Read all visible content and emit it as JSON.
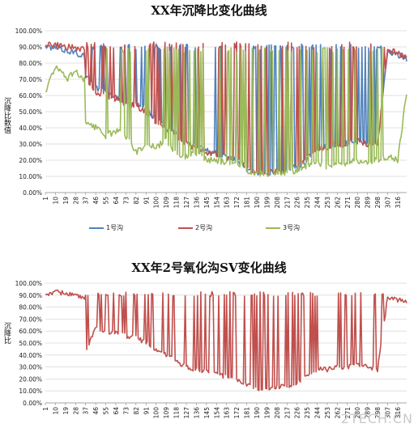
{
  "chart_data": [
    {
      "type": "line",
      "title": "XX年沉降比变化曲线",
      "ylabel": "沉降比数值",
      "xlabel": "",
      "ylim": [
        0,
        100
      ],
      "y_tick_labels": [
        "0.00%",
        "10.00%",
        "20.00%",
        "30.00%",
        "40.00%",
        "50.00%",
        "60.00%",
        "70.00%",
        "80.00%",
        "90.00%",
        "100.00%"
      ],
      "x_tick_labels": [
        "1",
        "10",
        "19",
        "28",
        "37",
        "46",
        "55",
        "64",
        "73",
        "82",
        "91",
        "100",
        "109",
        "118",
        "127",
        "136",
        "145",
        "154",
        "163",
        "172",
        "181",
        "190",
        "199",
        "208",
        "217",
        "226",
        "235",
        "244",
        "253",
        "262",
        "271",
        "280",
        "289",
        "298",
        "307",
        "316"
      ],
      "x_count": 324,
      "grid": true,
      "legend_position": "bottom",
      "series": [
        {
          "name": "1号沟",
          "color": "#4f81bd",
          "keypoints": [
            [
              1,
              90
            ],
            [
              20,
              88
            ],
            [
              30,
              86
            ],
            [
              36,
              85
            ],
            [
              37,
              72
            ],
            [
              46,
              65
            ],
            [
              55,
              62
            ],
            [
              64,
              60
            ],
            [
              73,
              56
            ],
            [
              82,
              55
            ],
            [
              91,
              52
            ],
            [
              100,
              45
            ],
            [
              109,
              40
            ],
            [
              118,
              36
            ],
            [
              127,
              30
            ],
            [
              136,
              28
            ],
            [
              145,
              26
            ],
            [
              154,
              24
            ],
            [
              163,
              23
            ],
            [
              172,
              20
            ],
            [
              181,
              15
            ],
            [
              190,
              12
            ],
            [
              199,
              12
            ],
            [
              208,
              13
            ],
            [
              217,
              14
            ],
            [
              226,
              15
            ],
            [
              235,
              20
            ],
            [
              240,
              25
            ],
            [
              244,
              28
            ],
            [
              253,
              28
            ],
            [
              262,
              30
            ],
            [
              271,
              30
            ],
            [
              280,
              32
            ],
            [
              289,
              30
            ],
            [
              298,
              32
            ],
            [
              307,
              88
            ],
            [
              316,
              85
            ],
            [
              324,
              83
            ]
          ],
          "spike_top": 92
        },
        {
          "name": "2号沟",
          "color": "#c0504d",
          "keypoints": [
            [
              1,
              92
            ],
            [
              20,
              90
            ],
            [
              30,
              89
            ],
            [
              36,
              88
            ],
            [
              37,
              70
            ],
            [
              46,
              62
            ],
            [
              55,
              60
            ],
            [
              64,
              58
            ],
            [
              73,
              55
            ],
            [
              82,
              54
            ],
            [
              91,
              50
            ],
            [
              100,
              44
            ],
            [
              109,
              40
            ],
            [
              118,
              35
            ],
            [
              127,
              30
            ],
            [
              136,
              27
            ],
            [
              145,
              25
            ],
            [
              154,
              24
            ],
            [
              163,
              22
            ],
            [
              172,
              20
            ],
            [
              181,
              15
            ],
            [
              190,
              12
            ],
            [
              199,
              12
            ],
            [
              208,
              13
            ],
            [
              217,
              14
            ],
            [
              226,
              16
            ],
            [
              235,
              22
            ],
            [
              240,
              26
            ],
            [
              244,
              28
            ],
            [
              253,
              28
            ],
            [
              262,
              30
            ],
            [
              271,
              30
            ],
            [
              280,
              32
            ],
            [
              289,
              30
            ],
            [
              298,
              30
            ],
            [
              307,
              88
            ],
            [
              316,
              86
            ],
            [
              324,
              84
            ]
          ],
          "spike_top": 93
        },
        {
          "name": "3号沟",
          "color": "#9bbb59",
          "keypoints": [
            [
              1,
              62
            ],
            [
              10,
              78
            ],
            [
              20,
              70
            ],
            [
              28,
              75
            ],
            [
              36,
              70
            ],
            [
              37,
              42
            ],
            [
              46,
              40
            ],
            [
              55,
              35
            ],
            [
              64,
              38
            ],
            [
              73,
              35
            ],
            [
              82,
              25
            ],
            [
              91,
              30
            ],
            [
              100,
              28
            ],
            [
              109,
              32
            ],
            [
              118,
              25
            ],
            [
              127,
              22
            ],
            [
              136,
              24
            ],
            [
              145,
              20
            ],
            [
              154,
              20
            ],
            [
              163,
              18
            ],
            [
              172,
              18
            ],
            [
              181,
              14
            ],
            [
              190,
              12
            ],
            [
              199,
              12
            ],
            [
              208,
              12
            ],
            [
              217,
              12
            ],
            [
              226,
              14
            ],
            [
              235,
              16
            ],
            [
              244,
              18
            ],
            [
              253,
              16
            ],
            [
              262,
              18
            ],
            [
              271,
              18
            ],
            [
              280,
              20
            ],
            [
              289,
              18
            ],
            [
              298,
              20
            ],
            [
              307,
              22
            ],
            [
              316,
              20
            ],
            [
              324,
              62
            ]
          ],
          "spike_top": 90
        }
      ]
    },
    {
      "type": "line",
      "title": "XX年2号氧化沟SV变化曲线",
      "ylabel": "沉降比",
      "xlabel": "",
      "ylim": [
        0,
        100
      ],
      "y_tick_labels": [
        "0.00%",
        "10.00%",
        "20.00%",
        "30.00%",
        "40.00%",
        "50.00%",
        "60.00%",
        "70.00%",
        "80.00%",
        "90.00%",
        "100.00%"
      ],
      "x_tick_labels": [
        "1",
        "10",
        "19",
        "28",
        "37",
        "46",
        "55",
        "64",
        "73",
        "82",
        "91",
        "100",
        "109",
        "118",
        "127",
        "136",
        "145",
        "154",
        "163",
        "172",
        "181",
        "190",
        "199",
        "208",
        "217",
        "226",
        "235",
        "244",
        "253",
        "262",
        "271",
        "280",
        "289",
        "298",
        "307",
        "316"
      ],
      "x_count": 324,
      "grid": true,
      "series": [
        {
          "name": "",
          "color": "#c0504d",
          "keypoints": [
            [
              1,
              90
            ],
            [
              10,
              93
            ],
            [
              20,
              91
            ],
            [
              28,
              90
            ],
            [
              36,
              86
            ],
            [
              37,
              44
            ],
            [
              46,
              62
            ],
            [
              55,
              58
            ],
            [
              64,
              60
            ],
            [
              73,
              56
            ],
            [
              82,
              55
            ],
            [
              91,
              50
            ],
            [
              100,
              44
            ],
            [
              109,
              40
            ],
            [
              118,
              35
            ],
            [
              127,
              30
            ],
            [
              136,
              28
            ],
            [
              145,
              26
            ],
            [
              154,
              24
            ],
            [
              163,
              22
            ],
            [
              172,
              20
            ],
            [
              181,
              15
            ],
            [
              190,
              12
            ],
            [
              199,
              12
            ],
            [
              208,
              13
            ],
            [
              217,
              14
            ],
            [
              226,
              16
            ],
            [
              235,
              22
            ],
            [
              244,
              28
            ],
            [
              253,
              28
            ],
            [
              262,
              30
            ],
            [
              271,
              30
            ],
            [
              280,
              32
            ],
            [
              289,
              30
            ],
            [
              298,
              28
            ],
            [
              307,
              88
            ],
            [
              316,
              86
            ],
            [
              324,
              84
            ]
          ],
          "spike_top": 93
        }
      ]
    }
  ],
  "watermark": "2TECH.CN"
}
